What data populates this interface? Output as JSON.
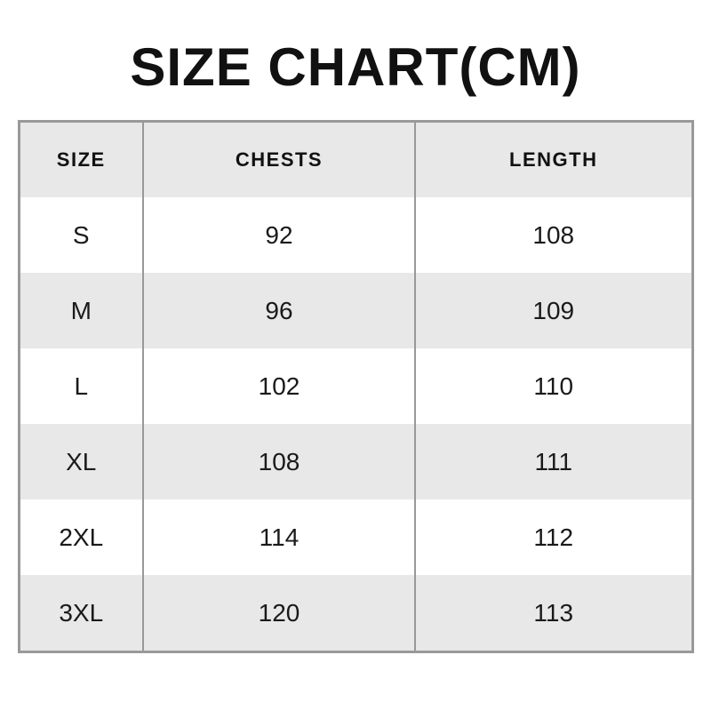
{
  "title": "SIZE CHART(CM)",
  "table": {
    "columns": {
      "size": "SIZE",
      "chests": "CHESTS",
      "length": "LENGTH"
    },
    "rows": [
      {
        "size": "S",
        "chests": "92",
        "length": "108"
      },
      {
        "size": "M",
        "chests": "96",
        "length": "109"
      },
      {
        "size": "L",
        "chests": "102",
        "length": "110"
      },
      {
        "size": "XL",
        "chests": "108",
        "length": "111"
      },
      {
        "size": "2XL",
        "chests": "114",
        "length": "112"
      },
      {
        "size": "3XL",
        "chests": "120",
        "length": "113"
      }
    ]
  },
  "colors": {
    "page_bg": "#ffffff",
    "row_alt_bg": "#e8e8e8",
    "header_bg": "#e8e8e8",
    "border": "#999999",
    "title_text": "#111111",
    "body_text": "#1a1a1a"
  },
  "chart_data": {
    "type": "table",
    "title": "SIZE CHART(CM)",
    "unit": "cm",
    "columns": [
      "SIZE",
      "CHESTS",
      "LENGTH"
    ],
    "rows": [
      [
        "S",
        92,
        108
      ],
      [
        "M",
        96,
        109
      ],
      [
        "L",
        102,
        110
      ],
      [
        "XL",
        108,
        111
      ],
      [
        "2XL",
        114,
        112
      ],
      [
        "3XL",
        120,
        113
      ]
    ]
  }
}
